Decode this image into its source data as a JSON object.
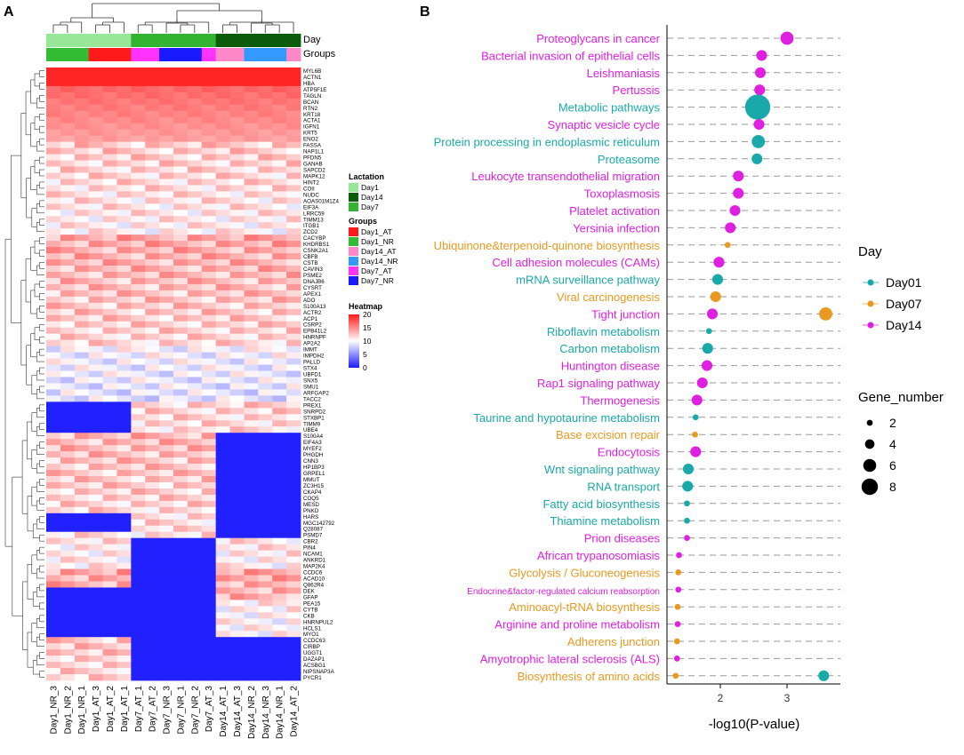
{
  "panels": {
    "a": "A",
    "b": "B"
  },
  "colors": {
    "Day1": "#98e698",
    "Day14": "#0a5c0a",
    "Day7": "#32b432",
    "Day1_AT": "#ff1a1a",
    "Day1_NR": "#33bb33",
    "Day14_AT": "#ff88c8",
    "Day14_NR": "#3399ff",
    "Day7_AT": "#ff33ff",
    "Day7_NR": "#1a1aff",
    "Day01": "#1aa9a9",
    "Day07": "#e89a20",
    "Day14dot": "#e020e0",
    "heat_low": "#1a1aff",
    "heat_mid": "#ffffff",
    "heat_high": "#ff1a1a"
  },
  "chart_data": [
    {
      "type": "heatmap",
      "title": "",
      "annotation_tracks": [
        {
          "label": "Day",
          "values": [
            "Day1",
            "Day1",
            "Day1",
            "Day1",
            "Day1",
            "Day1",
            "Day7",
            "Day7",
            "Day7",
            "Day7",
            "Day7",
            "Day7",
            "Day14",
            "Day14",
            "Day14",
            "Day14",
            "Day14",
            "Day14"
          ]
        },
        {
          "label": "Groups",
          "values": [
            "Day1_NR",
            "Day1_NR",
            "Day1_NR",
            "Day1_AT",
            "Day1_AT",
            "Day1_AT",
            "Day7_AT",
            "Day7_AT",
            "Day7_NR",
            "Day7_NR",
            "Day7_NR",
            "Day7_AT",
            "Day14_AT",
            "Day14_AT",
            "Day14_NR",
            "Day14_NR",
            "Day14_NR",
            "Day14_AT"
          ]
        }
      ],
      "columns": [
        "Day1_NR_3",
        "Day1_NR_2",
        "Day1_NR_1",
        "Day1_AT_3",
        "Day1_AT_2",
        "Day1_AT_1",
        "Day7_AT_1",
        "Day7_AT_2",
        "Day7_NR_3",
        "Day7_NR_1",
        "Day7_NR_2",
        "Day7_AT_3",
        "Day14_AT_1",
        "Day14_AT_3",
        "Day14_NR_2",
        "Day14_NR_3",
        "Day14_NR_1",
        "Day14_AT_2"
      ],
      "row_labels": [
        "MYL6B",
        "ACTN1",
        "HBA",
        "ATP5F1E",
        "TAGLN",
        "BCAN",
        "RTN2",
        "KRT18",
        "ACTA1",
        "IGFN1",
        "KRT5",
        "ENO2",
        "FASSA",
        "NAP1L1",
        "PFDN5",
        "GANAB",
        "SAPCD2",
        "MAPK12",
        "HINT2",
        "COII",
        "NUDC",
        "AOAS01M1Z4",
        "EIF3A",
        "LRRC59",
        "TIMM13",
        "ITGB1",
        "ZCD2",
        "CACYBP",
        "KHDRBS1",
        "CSNK2A1",
        "CBFB",
        "CSTB",
        "CAVIN3",
        "PSME2",
        "DNAJB6",
        "CYSRT",
        "APEX1",
        "ADO",
        "S100A13",
        "ACTR2",
        "ACP1",
        "CSRP2",
        "EPB41L2",
        "HNRNPF",
        "AP2A2",
        "IMMT",
        "IMPDH2",
        "PALLD",
        "STX4",
        "UBFD1",
        "SNX5",
        "SMU1",
        "ARFGAP2",
        "TACC2",
        "PREX1",
        "SNRPD2",
        "STXBP1",
        "TIMM9",
        "UBE4",
        "S100A4",
        "EIF4A3",
        "MYEF2",
        "PHGDH",
        "CNN3",
        "HP1BP3",
        "GRPEL1",
        "MMUT",
        "ZC3H15",
        "CKAP4",
        "COQ5",
        "MESD",
        "PNKD",
        "HARS",
        "MGC142792",
        "Q28087",
        "PSMD7",
        "CBR2",
        "PIN4",
        "NCAM1",
        "ANKRD1",
        "MAP2K4",
        "CCDC6",
        "ACAD10",
        "Q862R4",
        "DEK",
        "GFAP",
        "PEA15",
        "CYTB",
        "CKB",
        "HNRNPUL2",
        "HCLS1",
        "MYO1",
        "CCDC63",
        "CIRBP",
        "UGGT1",
        "DAZAP1",
        "ACSBG1",
        "NIPSNAP3A",
        "PYCR1"
      ],
      "legend": {
        "lactation_title": "Lactation",
        "lactation": [
          "Day1",
          "Day14",
          "Day7"
        ],
        "groups_title": "Groups",
        "groups": [
          "Day1_AT",
          "Day1_NR",
          "Day14_AT",
          "Day14_NR",
          "Day7_AT",
          "Day7_NR"
        ],
        "heatmap_title": "Heatmap",
        "scale_ticks": [
          20,
          15,
          10,
          5,
          0
        ],
        "range": [
          0,
          20
        ]
      }
    },
    {
      "type": "scatter",
      "xlabel": "-log10(P-value)",
      "ylabel": "",
      "xlim": [
        1.2,
        3.8
      ],
      "xticks": [
        2,
        3
      ],
      "grid": "horizontal dashed",
      "legend_day_title": "Day",
      "legend_day": [
        "Day01",
        "Day07",
        "Day14"
      ],
      "legend_size_title": "Gene_number",
      "legend_size": [
        2,
        4,
        6,
        8
      ],
      "pathways": [
        {
          "name": "Proteoglycans in cancer",
          "day": "Day14",
          "x": 3.0,
          "genes": 4
        },
        {
          "name": "Bacterial invasion of epithelial cells",
          "day": "Day14",
          "x": 2.62,
          "genes": 3
        },
        {
          "name": "Leishmaniasis",
          "day": "Day14",
          "x": 2.6,
          "genes": 3
        },
        {
          "name": "Pertussis",
          "day": "Day14",
          "x": 2.59,
          "genes": 3
        },
        {
          "name": "Metabolic pathways",
          "day": "Day01",
          "x": 2.56,
          "genes": 9
        },
        {
          "name": "Synaptic vesicle cycle",
          "day": "Day14",
          "x": 2.58,
          "genes": 3
        },
        {
          "name": "Protein processing in endoplasmic reticulum",
          "day": "Day01",
          "x": 2.57,
          "genes": 4
        },
        {
          "name": "Proteasome",
          "day": "Day01",
          "x": 2.55,
          "genes": 3
        },
        {
          "name": "Leukocyte transendothelial migration",
          "day": "Day14",
          "x": 2.27,
          "genes": 3
        },
        {
          "name": "Toxoplasmosis",
          "day": "Day14",
          "x": 2.27,
          "genes": 3
        },
        {
          "name": "Platelet activation",
          "day": "Day14",
          "x": 2.22,
          "genes": 3
        },
        {
          "name": "Yersinia infection",
          "day": "Day14",
          "x": 2.15,
          "genes": 3
        },
        {
          "name": "Ubiquinone&terpenoid-quinone biosynthesis",
          "day": "Day07",
          "x": 2.11,
          "genes": 1
        },
        {
          "name": "Cell adhesion molecules (CAMs)",
          "day": "Day14",
          "x": 1.98,
          "genes": 3
        },
        {
          "name": "mRNA surveillance pathway",
          "day": "Day01",
          "x": 1.96,
          "genes": 3
        },
        {
          "name": "Viral carcinogenesis",
          "day": "Day07",
          "x": 1.93,
          "genes": 3
        },
        {
          "name": "Tight junction",
          "day": "Day14",
          "x": 1.88,
          "genes": 3
        },
        {
          "name": "Tight junction",
          "day": "Day07",
          "x": 3.58,
          "genes": 4
        },
        {
          "name": "Riboflavin metabolism",
          "day": "Day01",
          "x": 1.83,
          "genes": 1
        },
        {
          "name": "Carbon metabolism",
          "day": "Day01",
          "x": 1.81,
          "genes": 3
        },
        {
          "name": "Huntington disease",
          "day": "Day14",
          "x": 1.8,
          "genes": 3
        },
        {
          "name": "Rap1 signaling pathway",
          "day": "Day14",
          "x": 1.73,
          "genes": 3
        },
        {
          "name": "Thermogenesis",
          "day": "Day14",
          "x": 1.65,
          "genes": 3
        },
        {
          "name": "Taurine and hypotaurine metabolism",
          "day": "Day01",
          "x": 1.63,
          "genes": 1
        },
        {
          "name": "Base excision repair",
          "day": "Day07",
          "x": 1.62,
          "genes": 1
        },
        {
          "name": "Endocytosis",
          "day": "Day14",
          "x": 1.63,
          "genes": 3
        },
        {
          "name": "Wnt signaling pathway",
          "day": "Day01",
          "x": 1.52,
          "genes": 3
        },
        {
          "name": "RNA transport",
          "day": "Day01",
          "x": 1.51,
          "genes": 3
        },
        {
          "name": "Fatty acid biosynthesis",
          "day": "Day01",
          "x": 1.5,
          "genes": 1
        },
        {
          "name": "Thiamine metabolism",
          "day": "Day01",
          "x": 1.5,
          "genes": 1
        },
        {
          "name": "Prion diseases",
          "day": "Day14",
          "x": 1.5,
          "genes": 1
        },
        {
          "name": "African trypanosomiasis",
          "day": "Day14",
          "x": 1.38,
          "genes": 1
        },
        {
          "name": "Glycolysis / Gluconeogenesis",
          "day": "Day07",
          "x": 1.37,
          "genes": 1
        },
        {
          "name": "Endocrine&factor-regulated calcium reabsorption",
          "day": "Day14",
          "x": 1.37,
          "genes": 1
        },
        {
          "name": "Aminoacyl-tRNA biosynthesis",
          "day": "Day07",
          "x": 1.36,
          "genes": 1
        },
        {
          "name": "Arginine and proline metabolism",
          "day": "Day14",
          "x": 1.36,
          "genes": 1
        },
        {
          "name": "Adherens junction",
          "day": "Day07",
          "x": 1.35,
          "genes": 1
        },
        {
          "name": "Amyotrophic lateral sclerosis (ALS)",
          "day": "Day14",
          "x": 1.35,
          "genes": 1
        },
        {
          "name": "Biosynthesis of amino acids",
          "day": "Day07",
          "x": 1.33,
          "genes": 1
        },
        {
          "name": "Biosynthesis of amino acids",
          "day": "Day01",
          "x": 3.55,
          "genes": 3
        }
      ]
    }
  ]
}
